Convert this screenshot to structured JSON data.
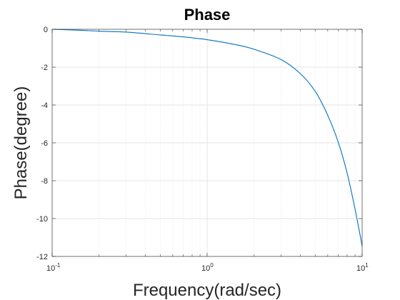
{
  "chart_data": {
    "type": "line",
    "title": "Phase",
    "xlabel": "Frequency(rad/sec)",
    "ylabel": "Phase(degree)",
    "xscale": "log",
    "xlim": [
      0.1,
      10
    ],
    "ylim": [
      -12,
      0
    ],
    "grid": true,
    "x_ticks": [
      {
        "base": "10",
        "exp": "-1",
        "value": 0.1
      },
      {
        "base": "10",
        "exp": "0",
        "value": 1
      },
      {
        "base": "10",
        "exp": "1",
        "value": 10
      }
    ],
    "y_ticks": [
      {
        "label": "0",
        "value": 0
      },
      {
        "label": "-2",
        "value": -2
      },
      {
        "label": "-4",
        "value": -4
      },
      {
        "label": "-6",
        "value": -6
      },
      {
        "label": "-8",
        "value": -8
      },
      {
        "label": "-10",
        "value": -10
      },
      {
        "label": "-12",
        "value": -12
      }
    ],
    "series": [
      {
        "color": "#0072BD",
        "x": [
          0.1,
          0.15,
          0.2,
          0.3,
          0.5,
          0.7,
          1.0,
          1.5,
          2.0,
          3.0,
          4.0,
          5.0,
          6.0,
          7.0,
          8.0,
          9.0,
          10.0
        ],
        "y": [
          0.0,
          -0.05,
          -0.1,
          -0.15,
          -0.3,
          -0.4,
          -0.55,
          -0.8,
          -1.05,
          -1.6,
          -2.35,
          -3.3,
          -4.55,
          -5.95,
          -7.6,
          -9.5,
          -11.45
        ]
      }
    ]
  }
}
